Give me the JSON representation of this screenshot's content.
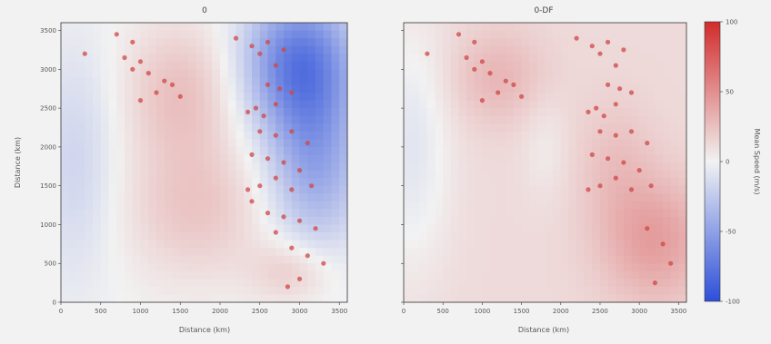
{
  "chart_data": {
    "type": "heatmap",
    "panels": [
      {
        "title": "0",
        "xlabel": "Distance (km)",
        "ylabel": "Distance (km)",
        "xlim": [
          0,
          3600
        ],
        "ylim": [
          0,
          3600
        ],
        "xticks": [
          0,
          500,
          1000,
          1500,
          2000,
          2500,
          3000,
          3500
        ],
        "yticks": [
          0,
          500,
          1000,
          1500,
          2000,
          2500,
          3000,
          3500
        ],
        "field": {
          "base": 0,
          "features": [
            {
              "cx": 1500,
              "cy": 2700,
              "sx": 700,
              "sy": 900,
              "amp": 25
            },
            {
              "cx": 1700,
              "cy": 1200,
              "sx": 900,
              "sy": 900,
              "amp": 22
            },
            {
              "cx": 3000,
              "cy": 3100,
              "sx": 700,
              "sy": 900,
              "amp": -70
            },
            {
              "cx": 3200,
              "cy": 1800,
              "sx": 600,
              "sy": 1100,
              "amp": -45
            },
            {
              "cx": 200,
              "cy": 1800,
              "sx": 500,
              "sy": 1500,
              "amp": -18
            },
            {
              "cx": 2900,
              "cy": 400,
              "sx": 500,
              "sy": 400,
              "amp": 20
            }
          ]
        },
        "stations": [
          [
            300,
            3200
          ],
          [
            700,
            3450
          ],
          [
            900,
            3350
          ],
          [
            800,
            3150
          ],
          [
            1000,
            3100
          ],
          [
            900,
            3000
          ],
          [
            1100,
            2950
          ],
          [
            1300,
            2850
          ],
          [
            1400,
            2800
          ],
          [
            1200,
            2700
          ],
          [
            1500,
            2650
          ],
          [
            1000,
            2600
          ],
          [
            2200,
            3400
          ],
          [
            2400,
            3300
          ],
          [
            2600,
            3350
          ],
          [
            2500,
            3200
          ],
          [
            2800,
            3250
          ],
          [
            2700,
            3050
          ],
          [
            2600,
            2800
          ],
          [
            2750,
            2750
          ],
          [
            2900,
            2700
          ],
          [
            2700,
            2550
          ],
          [
            2450,
            2500
          ],
          [
            2550,
            2400
          ],
          [
            2350,
            2450
          ],
          [
            2500,
            2200
          ],
          [
            2700,
            2150
          ],
          [
            2900,
            2200
          ],
          [
            3100,
            2050
          ],
          [
            2400,
            1900
          ],
          [
            2600,
            1850
          ],
          [
            2800,
            1800
          ],
          [
            3000,
            1700
          ],
          [
            2700,
            1600
          ],
          [
            2500,
            1500
          ],
          [
            2350,
            1450
          ],
          [
            2900,
            1450
          ],
          [
            3150,
            1500
          ],
          [
            2400,
            1300
          ],
          [
            2600,
            1150
          ],
          [
            2800,
            1100
          ],
          [
            3000,
            1050
          ],
          [
            3200,
            950
          ],
          [
            2700,
            900
          ],
          [
            2900,
            700
          ],
          [
            3100,
            600
          ],
          [
            3300,
            500
          ],
          [
            3000,
            300
          ],
          [
            2850,
            200
          ]
        ]
      },
      {
        "title": "0-DF",
        "xlabel": "Distance (km)",
        "ylabel": "",
        "xlim": [
          0,
          3600
        ],
        "ylim": [
          0,
          3600
        ],
        "xticks": [
          0,
          500,
          1000,
          1500,
          2000,
          2500,
          3000,
          3500
        ],
        "yticks": [
          0,
          500,
          1000,
          1500,
          2000,
          2500,
          3000,
          3500
        ],
        "field": {
          "base": 12,
          "features": [
            {
              "cx": 3200,
              "cy": 800,
              "sx": 700,
              "sy": 800,
              "amp": 30
            },
            {
              "cx": 1200,
              "cy": 2900,
              "sx": 600,
              "sy": 600,
              "amp": 18
            },
            {
              "cx": 2700,
              "cy": 1800,
              "sx": 500,
              "sy": 800,
              "amp": 12
            },
            {
              "cx": 100,
              "cy": 2000,
              "sx": 500,
              "sy": 1600,
              "amp": -20
            },
            {
              "cx": 1800,
              "cy": 2000,
              "sx": 300,
              "sy": 700,
              "amp": -8
            }
          ]
        },
        "stations": [
          [
            300,
            3200
          ],
          [
            700,
            3450
          ],
          [
            900,
            3350
          ],
          [
            800,
            3150
          ],
          [
            1000,
            3100
          ],
          [
            900,
            3000
          ],
          [
            1100,
            2950
          ],
          [
            1300,
            2850
          ],
          [
            1400,
            2800
          ],
          [
            1200,
            2700
          ],
          [
            1500,
            2650
          ],
          [
            1000,
            2600
          ],
          [
            2200,
            3400
          ],
          [
            2400,
            3300
          ],
          [
            2600,
            3350
          ],
          [
            2500,
            3200
          ],
          [
            2800,
            3250
          ],
          [
            2700,
            3050
          ],
          [
            2600,
            2800
          ],
          [
            2750,
            2750
          ],
          [
            2900,
            2700
          ],
          [
            2700,
            2550
          ],
          [
            2450,
            2500
          ],
          [
            2550,
            2400
          ],
          [
            2350,
            2450
          ],
          [
            2500,
            2200
          ],
          [
            2700,
            2150
          ],
          [
            2900,
            2200
          ],
          [
            3100,
            2050
          ],
          [
            2400,
            1900
          ],
          [
            2600,
            1850
          ],
          [
            2800,
            1800
          ],
          [
            3000,
            1700
          ],
          [
            2700,
            1600
          ],
          [
            2500,
            1500
          ],
          [
            2350,
            1450
          ],
          [
            2900,
            1450
          ],
          [
            3150,
            1500
          ],
          [
            3100,
            950
          ],
          [
            3300,
            750
          ],
          [
            3400,
            500
          ],
          [
            3200,
            250
          ]
        ]
      }
    ],
    "colorbar": {
      "label": "Mean Speed (m/s)",
      "vmin": -100,
      "vmax": 100,
      "ticks": [
        -100,
        -50,
        0,
        50,
        100
      ],
      "colormap": [
        "#2c4fd9",
        "#f2f2f2",
        "#d22b2b"
      ]
    },
    "marker_color": "#cd4747"
  }
}
